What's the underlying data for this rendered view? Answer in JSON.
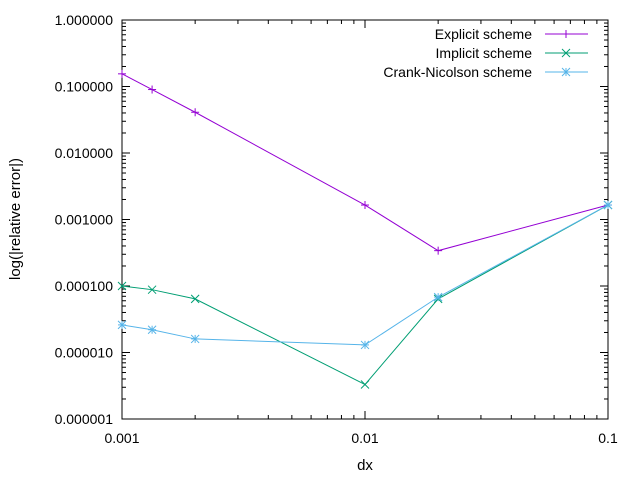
{
  "chart_data": {
    "type": "line",
    "title": "",
    "xlabel": "dx",
    "ylabel": "log(|relative error|)",
    "xscale": "log",
    "yscale": "log",
    "xlim": [
      0.001,
      0.1
    ],
    "ylim": [
      1e-06,
      1.0
    ],
    "xticks": [
      0.001,
      0.01,
      0.1
    ],
    "xtick_labels": [
      "0.001",
      "0.01",
      "0.1"
    ],
    "yticks": [
      1.0,
      0.1,
      0.01,
      0.001,
      0.0001,
      1e-05,
      1e-06
    ],
    "ytick_labels": [
      "1.000000",
      "0.100000",
      "0.010000",
      "0.001000",
      "0.000100",
      "0.000010",
      "0.000001"
    ],
    "legend_position": "top-right",
    "grid": false,
    "x": [
      0.001,
      0.00133,
      0.002,
      0.01,
      0.02,
      0.1
    ],
    "series": [
      {
        "name": "Explicit scheme",
        "marker": "plus",
        "color": "#9400d3",
        "values": [
          0.155,
          0.09,
          0.041,
          0.00165,
          0.00034,
          0.00165
        ]
      },
      {
        "name": "Implicit scheme",
        "marker": "cross",
        "color": "#009e73",
        "values": [
          0.0001,
          8.8e-05,
          6.4e-05,
          3.3e-06,
          6.4e-05,
          0.00165
        ]
      },
      {
        "name": "Crank-Nicolson scheme",
        "marker": "star",
        "color": "#56b4e9",
        "values": [
          2.6e-05,
          2.2e-05,
          1.6e-05,
          1.3e-05,
          6.8e-05,
          0.00165
        ]
      }
    ]
  }
}
